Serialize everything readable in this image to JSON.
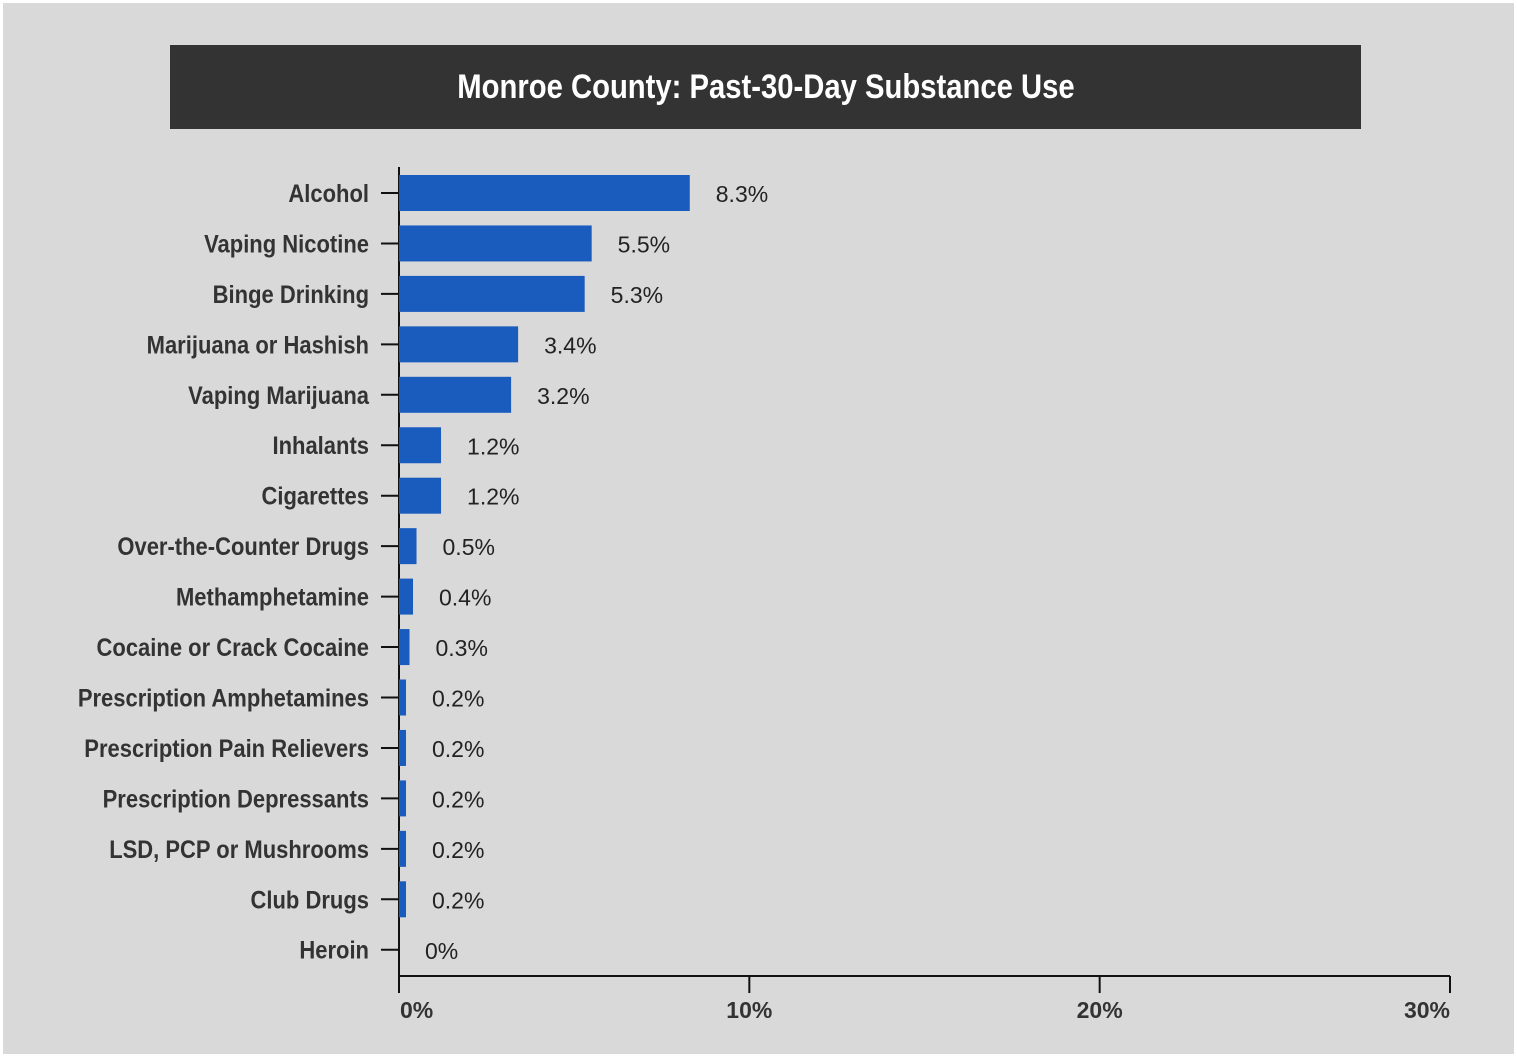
{
  "chart_data": {
    "type": "bar",
    "orientation": "horizontal",
    "title": "Monroe County: Past-30-Day Substance Use",
    "categories": [
      "Alcohol",
      "Vaping Nicotine",
      "Binge Drinking",
      "Marijuana or Hashish",
      "Vaping Marijuana",
      "Inhalants",
      "Cigarettes",
      "Over-the-Counter Drugs",
      "Methamphetamine",
      "Cocaine or Crack Cocaine",
      "Prescription Amphetamines",
      "Prescription Pain Relievers",
      "Prescription Depressants",
      "LSD, PCP or Mushrooms",
      "Club Drugs",
      "Heroin"
    ],
    "values": [
      8.3,
      5.5,
      5.3,
      3.4,
      3.2,
      1.2,
      1.2,
      0.5,
      0.4,
      0.3,
      0.2,
      0.2,
      0.2,
      0.2,
      0.2,
      0
    ],
    "value_labels": [
      "8.3%",
      "5.5%",
      "5.3%",
      "3.4%",
      "3.2%",
      "1.2%",
      "1.2%",
      "0.5%",
      "0.4%",
      "0.3%",
      "0.2%",
      "0.2%",
      "0.2%",
      "0.2%",
      "0.2%",
      "0%"
    ],
    "xlim": [
      0,
      30
    ],
    "xticks": [
      0,
      10,
      20,
      30
    ],
    "xtick_labels": [
      "0%",
      "10%",
      "20%",
      "30%"
    ],
    "xlabel": "",
    "ylabel": "",
    "grid": false,
    "legend": "none",
    "colors": {
      "bar": "#1a5cbe",
      "background": "#d9d9d9",
      "title_bar": "#333333",
      "title_text": "#ffffff",
      "axis": "#111111",
      "label_text": "#333333"
    }
  }
}
